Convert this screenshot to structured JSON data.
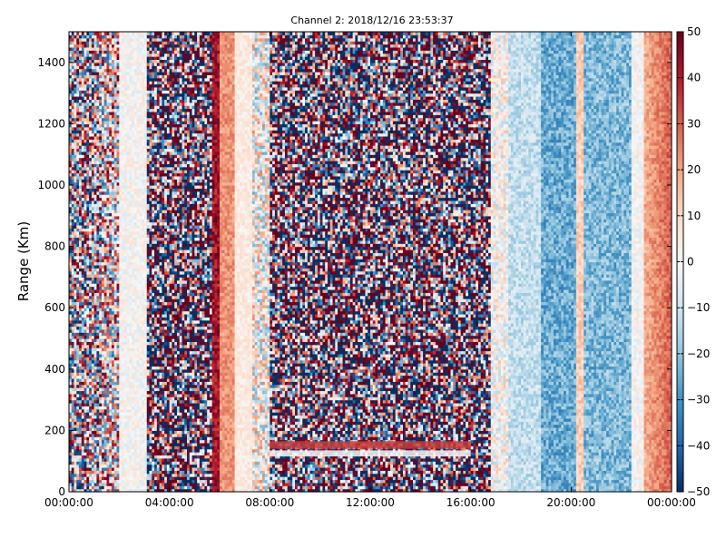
{
  "chart_data": {
    "type": "heatmap",
    "title": "Channel 2: 2018/12/16 23:53:37",
    "xlabel": "",
    "ylabel": "Range (Km)",
    "x_ticks": [
      "00:00:00",
      "04:00:00",
      "08:00:00",
      "12:00:00",
      "16:00:00",
      "20:00:00",
      "00:00:00"
    ],
    "x_range_hours": [
      0,
      24
    ],
    "y_ticks": [
      0,
      200,
      400,
      600,
      800,
      1000,
      1200,
      1400
    ],
    "ylim": [
      0,
      1500
    ],
    "colorbar": {
      "ticks": [
        50,
        40,
        30,
        20,
        10,
        0,
        -10,
        -20,
        -30,
        -40,
        -50
      ],
      "range": [
        -50,
        50
      ],
      "colormap": "RdBu_r"
    },
    "colors": {
      "low": "#053061",
      "mid": "#f7f7f7",
      "high": "#67001f"
    },
    "bands": [
      {
        "hours": [
          0.0,
          1.3
        ],
        "mean": 0,
        "noise": 55,
        "grad": 0
      },
      {
        "hours": [
          1.3,
          2.0
        ],
        "mean": 5,
        "noise": 45,
        "grad": 0
      },
      {
        "hours": [
          2.0,
          3.1
        ],
        "mean": 0,
        "noise": 8,
        "grad": 0
      },
      {
        "hours": [
          3.1,
          5.7
        ],
        "mean": 0,
        "noise": 80,
        "grad": 0
      },
      {
        "hours": [
          5.7,
          6.0
        ],
        "mean": 42,
        "noise": 8,
        "grad": 0
      },
      {
        "hours": [
          6.0,
          6.6
        ],
        "mean": 22,
        "noise": 6,
        "grad": 0
      },
      {
        "hours": [
          6.6,
          7.3
        ],
        "mean": 5,
        "noise": 5,
        "grad": 0
      },
      {
        "hours": [
          7.3,
          8.0
        ],
        "mean": 0,
        "noise": 25,
        "grad": 0
      },
      {
        "hours": [
          8.0,
          16.8
        ],
        "mean": 0,
        "noise": 80,
        "grad": 0
      },
      {
        "hours": [
          16.8,
          17.5
        ],
        "mean": 0,
        "noise": 15,
        "grad": 0
      },
      {
        "hours": [
          17.5,
          18.8
        ],
        "mean": -12,
        "noise": 8,
        "grad": 0
      },
      {
        "hours": [
          18.8,
          20.2
        ],
        "mean": -25,
        "noise": 10,
        "grad": 0
      },
      {
        "hours": [
          20.2,
          20.5
        ],
        "mean": 12,
        "noise": 6,
        "grad": 0
      },
      {
        "hours": [
          20.5,
          22.4
        ],
        "mean": -22,
        "noise": 10,
        "grad": 0
      },
      {
        "hours": [
          22.4,
          22.9
        ],
        "mean": 0,
        "noise": 8,
        "grad": 0
      },
      {
        "hours": [
          22.9,
          24.0
        ],
        "mean": 18,
        "noise": 6,
        "grad": 12
      }
    ],
    "features": [
      {
        "hours": [
          8.0,
          16.0
        ],
        "range_km": [
          140,
          165
        ],
        "value": 35,
        "label": ""
      },
      {
        "hours": [
          8.0,
          16.0
        ],
        "range_km": [
          115,
          135
        ],
        "value": 0,
        "label": ""
      }
    ]
  }
}
